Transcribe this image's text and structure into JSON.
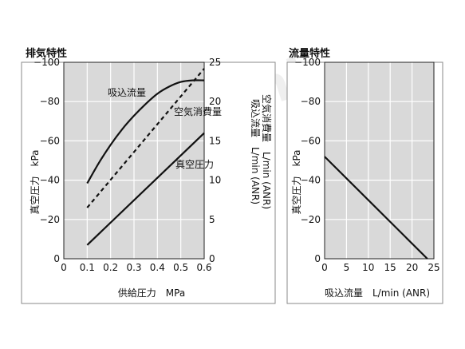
{
  "colors": {
    "plot_bg": "#d9d9d9",
    "grid": "#ffffff",
    "line": "#111111",
    "frame": "#8a8a8a"
  },
  "watermark": "misumi",
  "chart_data": [
    {
      "type": "line",
      "title": "排気特性",
      "xlabel": "供給圧力　MPa",
      "ylabel": "真空圧力　kPa",
      "y2label_1": "吸込流量　L/min (ANR)",
      "y2label_2": "空気消費量　L/min (ANR)",
      "xlim": [
        0,
        0.6
      ],
      "ylim": [
        0,
        -100
      ],
      "y2lim": [
        0,
        25
      ],
      "x_ticks": [
        "0",
        "0.1",
        "0.2",
        "0.3",
        "0.4",
        "0.5",
        "0.6"
      ],
      "y_ticks": [
        "0",
        "−20",
        "−40",
        "−60",
        "−80",
        "−100"
      ],
      "y2_ticks": [
        "0",
        "5",
        "10",
        "15",
        "20",
        "25"
      ],
      "grid": true,
      "series": [
        {
          "name": "吸込流量",
          "axis": "right",
          "style": "solid",
          "x": [
            0.1,
            0.15,
            0.2,
            0.25,
            0.3,
            0.35,
            0.4,
            0.45,
            0.5,
            0.55,
            0.6
          ],
          "y": [
            9.6,
            12.2,
            14.5,
            16.5,
            18.2,
            19.7,
            21.0,
            21.9,
            22.5,
            22.7,
            22.7
          ]
        },
        {
          "name": "空気消費量",
          "axis": "right",
          "style": "dashed",
          "x": [
            0.1,
            0.6
          ],
          "y": [
            6.5,
            24.2
          ]
        },
        {
          "name": "真空圧力",
          "axis": "left",
          "style": "solid",
          "x": [
            0.1,
            0.6
          ],
          "y": [
            -7,
            -64
          ]
        }
      ],
      "annotations": [
        "吸込流量",
        "空気消費量",
        "真空圧力"
      ]
    },
    {
      "type": "line",
      "title": "流量特性",
      "xlabel": "吸込流量　L/min (ANR)",
      "ylabel": "真空圧力　kPa",
      "xlim": [
        0,
        25
      ],
      "ylim": [
        0,
        -100
      ],
      "x_ticks": [
        "0",
        "5",
        "10",
        "15",
        "20",
        "25"
      ],
      "y_ticks": [
        "0",
        "−20",
        "−40",
        "−60",
        "−80",
        "−100"
      ],
      "grid": true,
      "series": [
        {
          "x": [
            0,
            23.5
          ],
          "y": [
            -52,
            0
          ]
        }
      ]
    }
  ]
}
